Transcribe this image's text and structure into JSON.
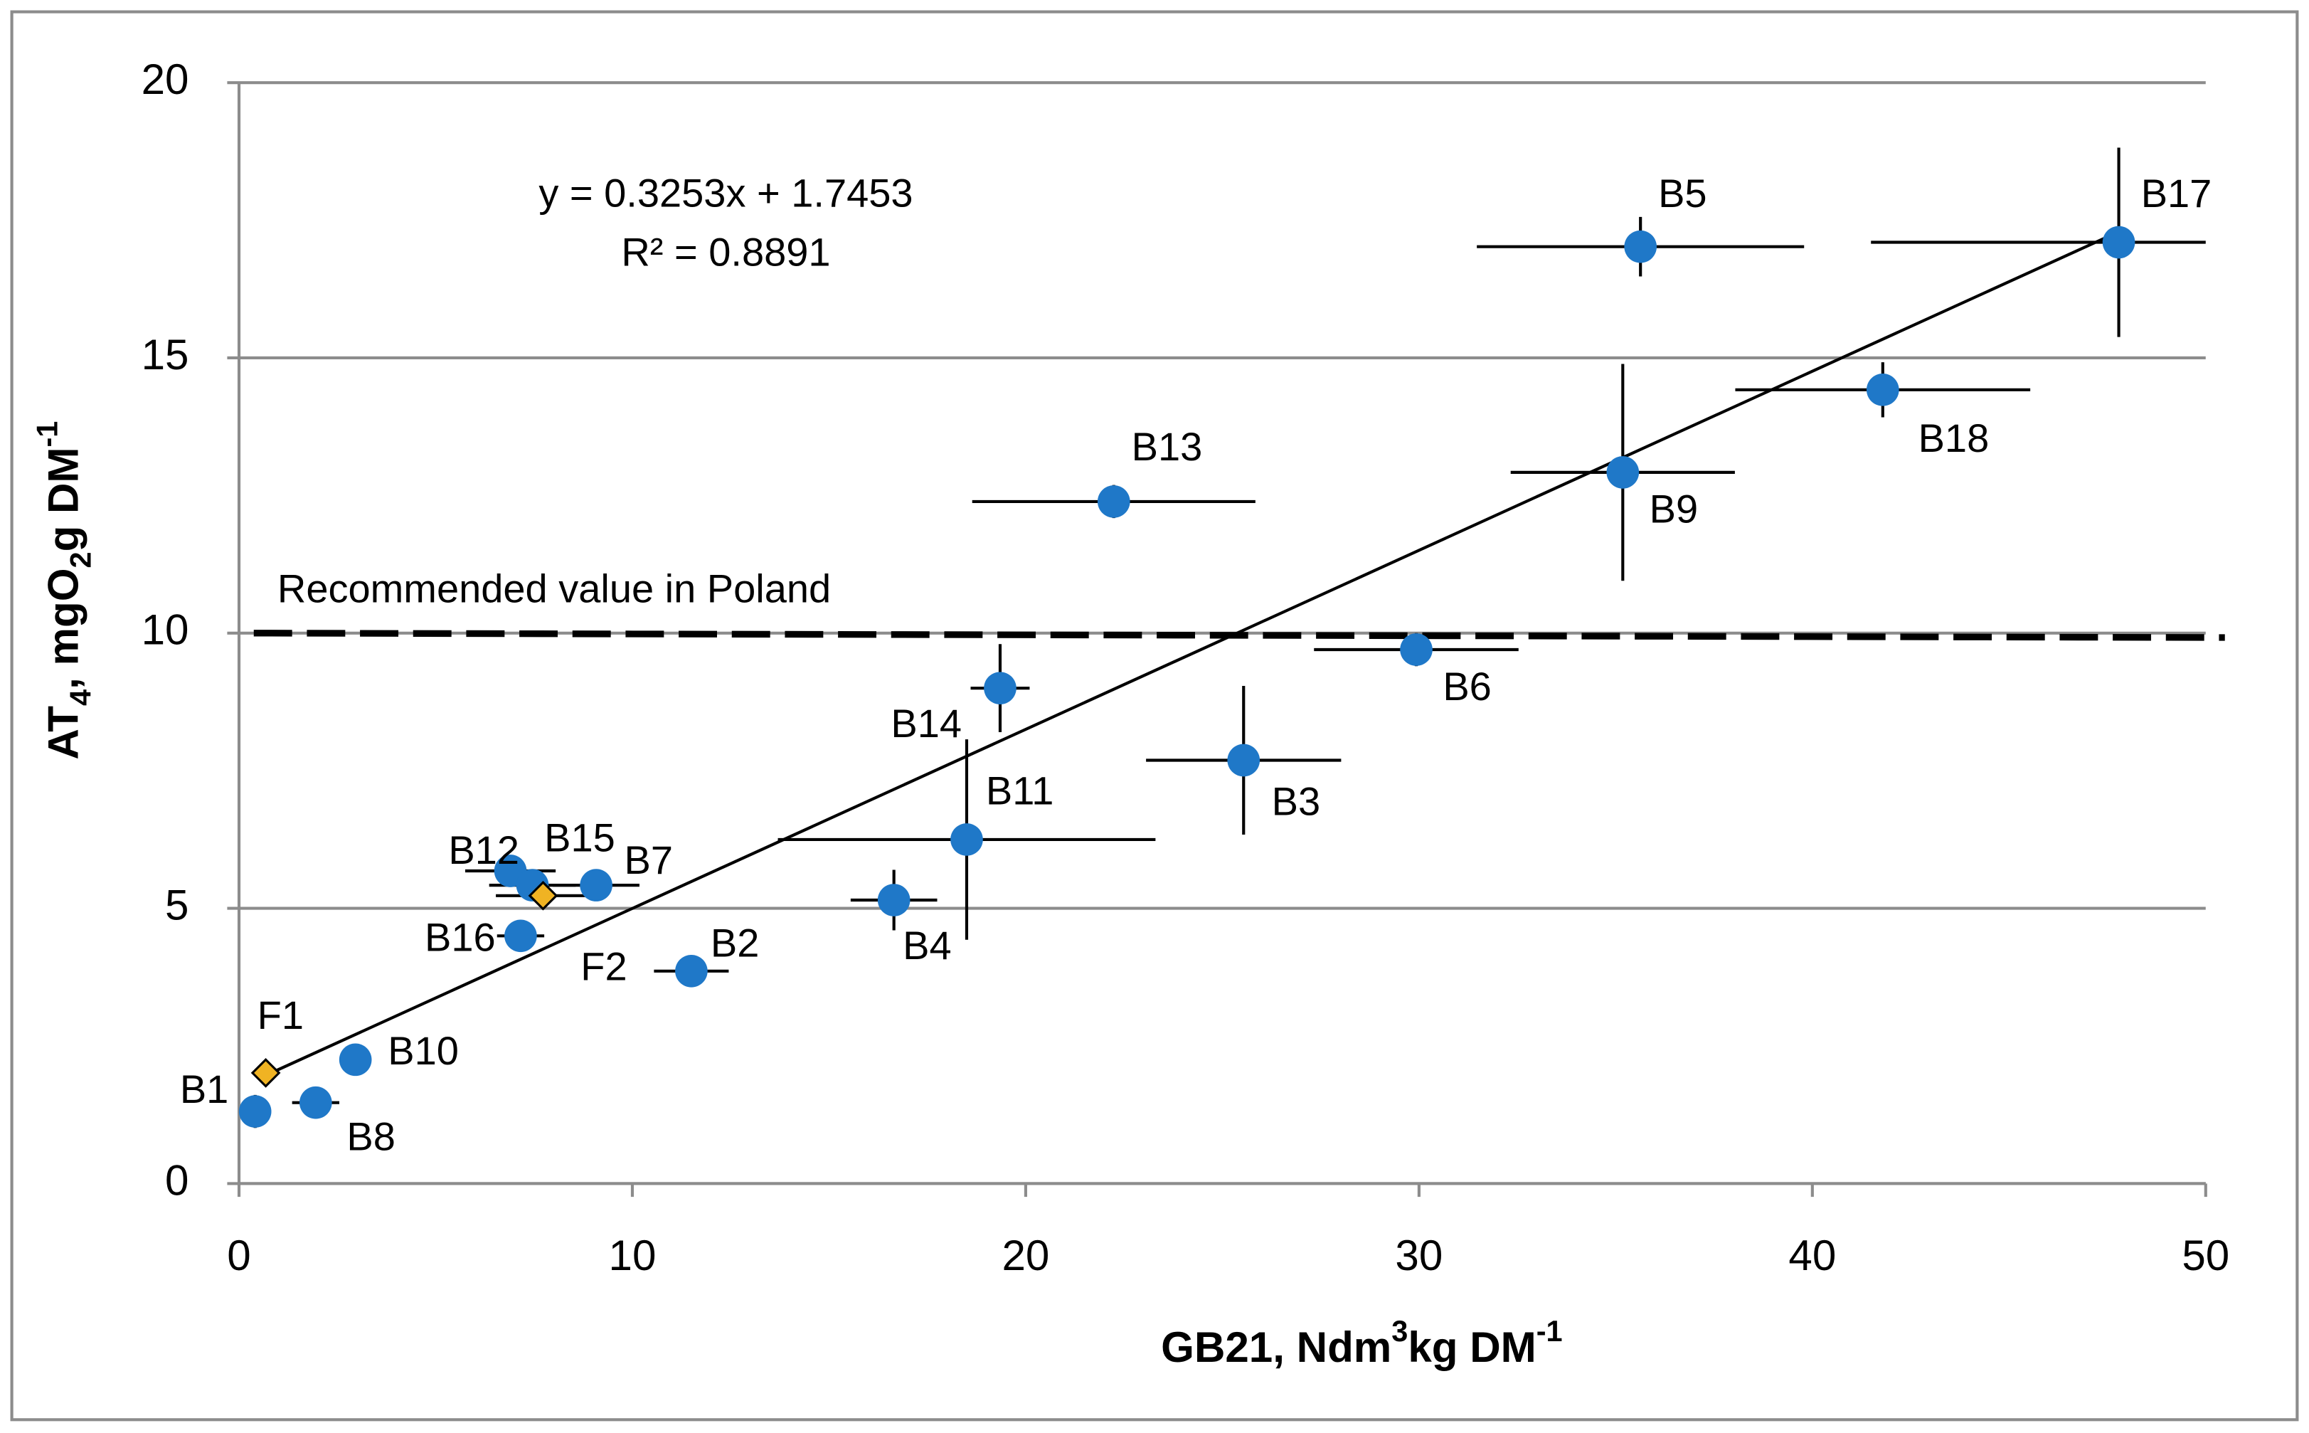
{
  "chart_data": {
    "type": "scatter",
    "xlim": [
      0,
      50
    ],
    "xticks": [
      0,
      10,
      20,
      30,
      40,
      50
    ],
    "ylim": [
      0,
      20
    ],
    "yticks": [
      0,
      5,
      10,
      15,
      20
    ],
    "grid": true,
    "xlabel_parts": [
      {
        "text": "GB21, Ndm"
      },
      {
        "text": "3",
        "script": "sup"
      },
      {
        "text": "kg DM"
      },
      {
        "text": "-1",
        "script": "sup"
      }
    ],
    "ylabel_parts": [
      {
        "text": "AT"
      },
      {
        "text": "4",
        "script": "sub"
      },
      {
        "text": ", mgO"
      },
      {
        "text": "2",
        "script": "sub"
      },
      {
        "text": "g DM"
      },
      {
        "text": "-1",
        "script": "sup"
      }
    ],
    "equation": "y = 0.3253x + 1.7453",
    "r2_label": "R² = 0.8891",
    "trendline": {
      "slope": 0.3253,
      "intercept": 1.7453,
      "x_range": [
        0.68,
        47.79
      ],
      "color": "#000000"
    },
    "reference_line": {
      "value": 10,
      "label": "Recommended value in Poland",
      "color": "#000000"
    },
    "points": [
      {
        "label": "B1",
        "x": 0.41,
        "y": 1.31,
        "xerr": 0,
        "yerr": 0.3,
        "shape": "circle",
        "color": "#1f78c8"
      },
      {
        "label": "B8",
        "x": 1.95,
        "y": 1.47,
        "xerr": 0.6,
        "yerr": 0,
        "shape": "circle",
        "color": "#1f78c8"
      },
      {
        "label": "B10",
        "x": 2.96,
        "y": 2.25,
        "xerr": 0,
        "yerr": 0,
        "shape": "circle",
        "color": "#1f78c8"
      },
      {
        "label": "F1",
        "x": 0.68,
        "y": 2.01,
        "xerr": 0,
        "yerr": 0,
        "shape": "diamond",
        "color": "#f0b323"
      },
      {
        "label": "B12",
        "x": 6.9,
        "y": 5.68,
        "xerr": 1.15,
        "yerr": 0.1,
        "shape": "circle",
        "color": "#1f78c8"
      },
      {
        "label": "B15",
        "x": 7.46,
        "y": 5.42,
        "xerr": 1.1,
        "yerr": 0.1,
        "shape": "circle",
        "color": "#1f78c8"
      },
      {
        "label": "F2",
        "x": 7.73,
        "y": 5.23,
        "xerr": 1.2,
        "yerr": 0.2,
        "shape": "diamond",
        "color": "#f0b323"
      },
      {
        "label": "B7",
        "x": 9.08,
        "y": 5.42,
        "xerr": 1.1,
        "yerr": 0.1,
        "shape": "circle",
        "color": "#1f78c8"
      },
      {
        "label": "B16",
        "x": 7.16,
        "y": 4.5,
        "xerr": 0.6,
        "yerr": 0.1,
        "shape": "circle",
        "color": "#1f78c8"
      },
      {
        "label": "B2",
        "x": 11.5,
        "y": 3.86,
        "xerr": 0.95,
        "yerr": 0.1,
        "shape": "circle",
        "color": "#1f78c8"
      },
      {
        "label": "B4",
        "x": 16.65,
        "y": 5.15,
        "xerr": 1.1,
        "yerr": 0.55,
        "shape": "circle",
        "color": "#1f78c8"
      },
      {
        "label": "B11",
        "x": 18.5,
        "y": 6.25,
        "xerr": 4.8,
        "yerr": 1.82,
        "shape": "circle",
        "color": "#1f78c8"
      },
      {
        "label": "B14",
        "x": 19.35,
        "y": 9.0,
        "xerr": 0.75,
        "yerr": 0.8,
        "shape": "circle",
        "color": "#1f78c8"
      },
      {
        "label": "B13",
        "x": 22.24,
        "y": 12.39,
        "xerr": 3.6,
        "yerr": 0.3,
        "shape": "circle",
        "color": "#1f78c8"
      },
      {
        "label": "B3",
        "x": 25.54,
        "y": 7.69,
        "xerr": 2.48,
        "yerr": 1.35,
        "shape": "circle",
        "color": "#1f78c8"
      },
      {
        "label": "B6",
        "x": 29.93,
        "y": 9.7,
        "xerr": 2.6,
        "yerr": 0.3,
        "shape": "circle",
        "color": "#1f78c8"
      },
      {
        "label": "B9",
        "x": 35.18,
        "y": 12.92,
        "xerr": 2.85,
        "yerr": 1.97,
        "shape": "circle",
        "color": "#1f78c8"
      },
      {
        "label": "B5",
        "x": 35.63,
        "y": 17.02,
        "xerr": 4.16,
        "yerr": 0.54,
        "shape": "circle",
        "color": "#1f78c8"
      },
      {
        "label": "B18",
        "x": 41.79,
        "y": 14.42,
        "xerr": 3.75,
        "yerr": 0.5,
        "shape": "circle",
        "color": "#1f78c8"
      },
      {
        "label": "B17",
        "x": 47.79,
        "y": 17.1,
        "xerr": 6.3,
        "yerr": 1.72,
        "shape": "circle",
        "color": "#1f78c8"
      }
    ]
  }
}
